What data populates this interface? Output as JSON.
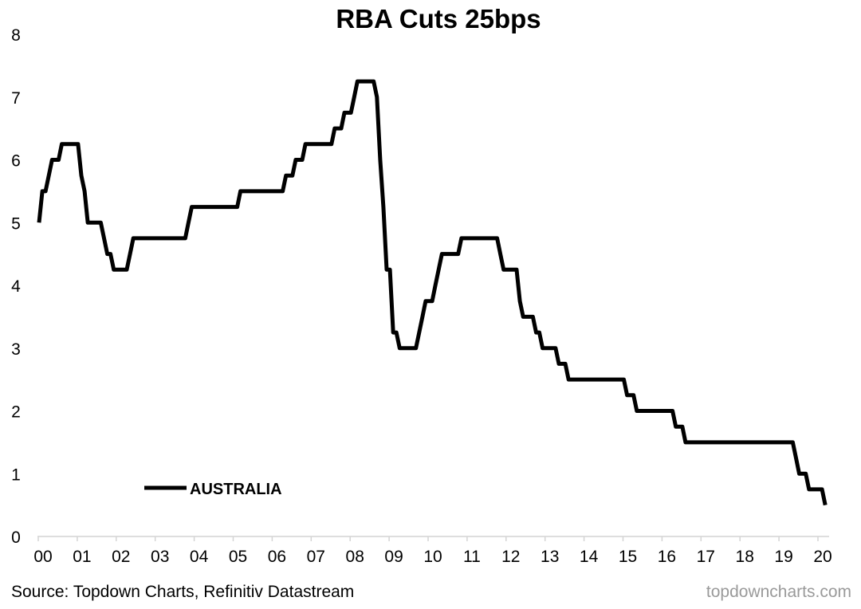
{
  "chart_data": {
    "type": "line",
    "title": "RBA Cuts 25bps",
    "xlabel": "",
    "ylabel": "",
    "ylim": [
      0,
      8
    ],
    "xlim": [
      "2000-01",
      "2020-03"
    ],
    "y_ticks": [
      "0",
      "1",
      "2",
      "3",
      "4",
      "5",
      "6",
      "7",
      "8"
    ],
    "x_ticks": [
      "00",
      "01",
      "02",
      "03",
      "04",
      "05",
      "06",
      "07",
      "08",
      "09",
      "10",
      "11",
      "12",
      "13",
      "14",
      "15",
      "16",
      "17",
      "18",
      "19",
      "20"
    ],
    "grid": false,
    "legend": {
      "position": "bottom-left"
    },
    "series": [
      {
        "name": "AUSTRALIA",
        "color": "#000000",
        "step_changes": [
          [
            "2000-01",
            5.0
          ],
          [
            "2000-02",
            5.5
          ],
          [
            "2000-04",
            5.75
          ],
          [
            "2000-05",
            6.0
          ],
          [
            "2000-08",
            6.25
          ],
          [
            "2001-02",
            5.75
          ],
          [
            "2001-03",
            5.5
          ],
          [
            "2001-04",
            5.0
          ],
          [
            "2001-09",
            4.75
          ],
          [
            "2001-10",
            4.5
          ],
          [
            "2001-12",
            4.25
          ],
          [
            "2002-05",
            4.5
          ],
          [
            "2002-06",
            4.75
          ],
          [
            "2003-11",
            5.0
          ],
          [
            "2003-12",
            5.25
          ],
          [
            "2005-03",
            5.5
          ],
          [
            "2006-05",
            5.75
          ],
          [
            "2006-08",
            6.0
          ],
          [
            "2006-11",
            6.25
          ],
          [
            "2007-08",
            6.5
          ],
          [
            "2007-11",
            6.75
          ],
          [
            "2008-02",
            7.0
          ],
          [
            "2008-03",
            7.25
          ],
          [
            "2008-09",
            7.0
          ],
          [
            "2008-10",
            6.0
          ],
          [
            "2008-11",
            5.25
          ],
          [
            "2008-12",
            4.25
          ],
          [
            "2009-02",
            3.25
          ],
          [
            "2009-04",
            3.0
          ],
          [
            "2009-10",
            3.25
          ],
          [
            "2009-11",
            3.5
          ],
          [
            "2009-12",
            3.75
          ],
          [
            "2010-03",
            4.0
          ],
          [
            "2010-04",
            4.25
          ],
          [
            "2010-05",
            4.5
          ],
          [
            "2010-11",
            4.75
          ],
          [
            "2011-11",
            4.5
          ],
          [
            "2011-12",
            4.25
          ],
          [
            "2012-05",
            3.75
          ],
          [
            "2012-06",
            3.5
          ],
          [
            "2012-10",
            3.25
          ],
          [
            "2012-12",
            3.0
          ],
          [
            "2013-05",
            2.75
          ],
          [
            "2013-08",
            2.5
          ],
          [
            "2015-02",
            2.25
          ],
          [
            "2015-05",
            2.0
          ],
          [
            "2016-05",
            1.75
          ],
          [
            "2016-08",
            1.5
          ],
          [
            "2019-06",
            1.25
          ],
          [
            "2019-07",
            1.0
          ],
          [
            "2019-10",
            0.75
          ],
          [
            "2020-03",
            0.5
          ]
        ]
      }
    ]
  },
  "footer": {
    "source": "Source: Topdown Charts, Refinitiv Datastream",
    "brand": "topdowncharts.com"
  }
}
